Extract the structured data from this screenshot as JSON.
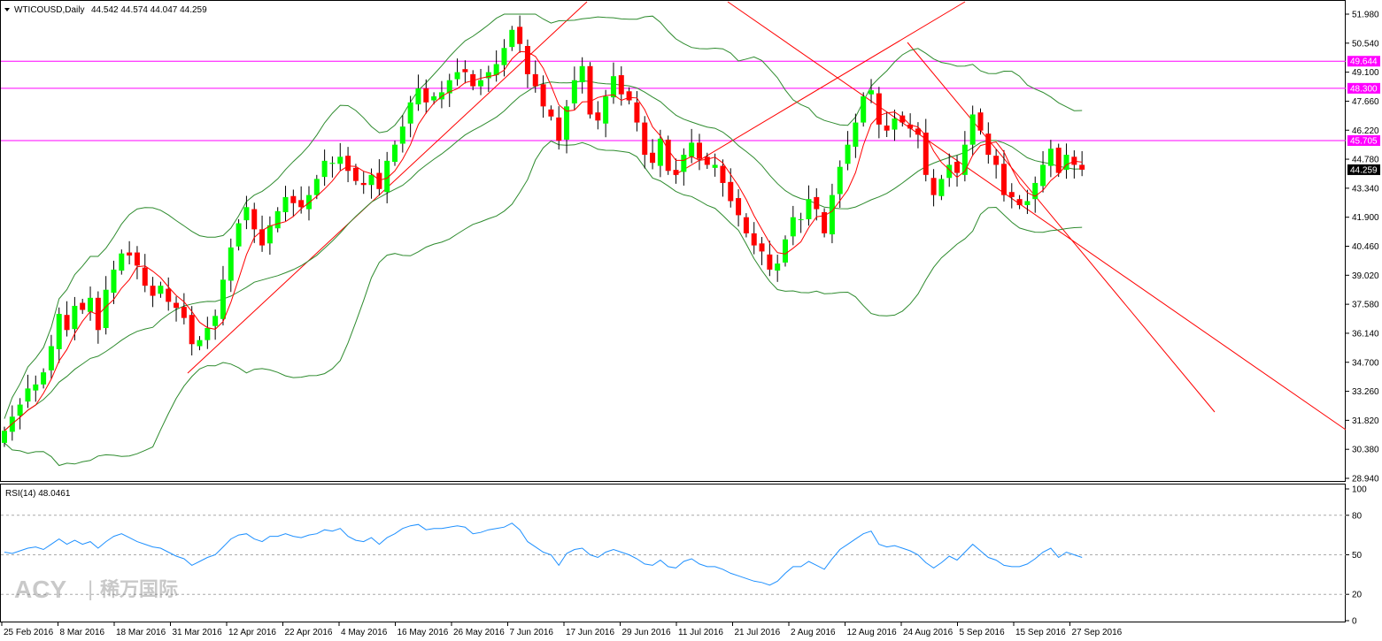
{
  "symbol_header": "WTICOUSD,Daily",
  "ohlc_header": "44.542 44.574 44.047 44.259",
  "rsi_header": "RSI(14) 48.0461",
  "watermark": {
    "brand": "ACY",
    "separator": "|",
    "chinese": "稀万国际"
  },
  "colors": {
    "bull": "#00ff00",
    "bear": "#ff0000",
    "bands": "#2e8b2e",
    "ma": "#ff0000",
    "trend": "#ff0000",
    "hline": "#ff00ff",
    "rsi": "#1e90ff",
    "price_tag_bg": "#000000",
    "level_tag_bg": "#ff00ff"
  },
  "chart_data": [
    {
      "type": "candlestick",
      "title": "WTICOUSD,Daily",
      "ylim": [
        28.94,
        51.98
      ],
      "y_ticks": [
        "51.980",
        "50.540",
        "49.100",
        "47.660",
        "46.220",
        "44.780",
        "43.340",
        "41.900",
        "40.460",
        "39.020",
        "37.580",
        "36.140",
        "34.700",
        "33.260",
        "31.820",
        "30.380",
        "28.940"
      ],
      "x_ticks": [
        "25 Feb 2016",
        "8 Mar 2016",
        "18 Mar 2016",
        "31 Mar 2016",
        "12 Apr 2016",
        "22 Apr 2016",
        "4 May 2016",
        "16 May 2016",
        "26 May 2016",
        "7 Jun 2016",
        "17 Jun 2016",
        "29 Jun 2016",
        "11 Jul 2016",
        "21 Jul 2016",
        "2 Aug 2016",
        "12 Aug 2016",
        "24 Aug 2016",
        "5 Sep 2016",
        "15 Sep 2016",
        "27 Sep 2016"
      ],
      "horizontal_levels": [
        {
          "value": 49.644,
          "label": "49.644"
        },
        {
          "value": 48.3,
          "label": "48.300"
        },
        {
          "value": 45.705,
          "label": "45.705"
        }
      ],
      "last_price": {
        "value": 44.259,
        "label": "44.259"
      },
      "closes": [
        31.3,
        32.0,
        32.6,
        33.4,
        33.6,
        34.2,
        35.5,
        37.1,
        36.3,
        37.5,
        37.3,
        37.9,
        36.3,
        38.3,
        39.3,
        40.1,
        40.0,
        39.5,
        38.5,
        38.0,
        38.5,
        37.7,
        37.4,
        36.9,
        35.6,
        35.8,
        36.4,
        37.0,
        38.8,
        40.4,
        41.6,
        42.4,
        41.3,
        40.5,
        41.5,
        42.2,
        42.9,
        42.6,
        42.4,
        43.0,
        43.8,
        44.7,
        44.6,
        44.9,
        44.2,
        43.7,
        43.5,
        44.0,
        43.3,
        44.7,
        45.5,
        46.4,
        47.6,
        48.3,
        47.6,
        47.9,
        48.1,
        48.7,
        49.1,
        49.1,
        48.4,
        48.7,
        49.1,
        49.5,
        50.3,
        51.2,
        50.5,
        49.0,
        48.4,
        47.4,
        46.9,
        45.7,
        47.4,
        48.7,
        49.4,
        47.0,
        46.7,
        47.9,
        48.9,
        48.0,
        47.7,
        46.6,
        45.0,
        44.6,
        45.8,
        44.2,
        44.0,
        45.0,
        45.6,
        44.8,
        44.5,
        44.5,
        43.6,
        42.7,
        42.0,
        41.1,
        40.5,
        40.2,
        39.3,
        39.6,
        40.8,
        41.9,
        41.8,
        42.8,
        42.3,
        41.1,
        43.0,
        44.4,
        45.5,
        46.6,
        47.9,
        48.2,
        46.5,
        46.2,
        46.8,
        46.6,
        46.3,
        46.0,
        44.0,
        43.0,
        43.8,
        44.5,
        44.1,
        45.5,
        47.0,
        46.2,
        45.0,
        44.5,
        43.0,
        42.9,
        42.5,
        42.7,
        43.6,
        44.5,
        45.3,
        44.1,
        45.0,
        44.5,
        44.26
      ],
      "bands": {
        "upper_start": 33.1,
        "upper_peak_early": 40.5,
        "note": "Bollinger Bands (20) and 5-period MA overlays"
      }
    },
    {
      "type": "line",
      "title": "RSI(14) 48.0461",
      "ylim": [
        0,
        100
      ],
      "y_ticks": [
        "100",
        "80",
        "50",
        "20",
        "0"
      ],
      "levels": [
        80,
        50,
        20
      ],
      "values": [
        52,
        51,
        53,
        55,
        56,
        54,
        58,
        62,
        58,
        61,
        58,
        60,
        55,
        60,
        64,
        66,
        63,
        60,
        58,
        56,
        55,
        52,
        49,
        47,
        42,
        45,
        48,
        50,
        56,
        62,
        65,
        66,
        62,
        60,
        64,
        64,
        66,
        64,
        63,
        65,
        66,
        69,
        68,
        70,
        64,
        61,
        60,
        63,
        58,
        63,
        66,
        70,
        72,
        73,
        69,
        70,
        70,
        71,
        72,
        71,
        66,
        67,
        69,
        70,
        71,
        74,
        69,
        60,
        56,
        52,
        50,
        42,
        51,
        54,
        55,
        50,
        48,
        52,
        54,
        52,
        50,
        47,
        43,
        42,
        46,
        41,
        40,
        45,
        47,
        43,
        41,
        41,
        39,
        36,
        34,
        32,
        30,
        29,
        27,
        30,
        36,
        41,
        41,
        45,
        42,
        39,
        47,
        54,
        58,
        62,
        66,
        68,
        58,
        56,
        57,
        55,
        53,
        50,
        44,
        40,
        44,
        49,
        46,
        52,
        58,
        53,
        48,
        46,
        42,
        41,
        41,
        43,
        47,
        52,
        55,
        48,
        52,
        50,
        48
      ]
    }
  ]
}
